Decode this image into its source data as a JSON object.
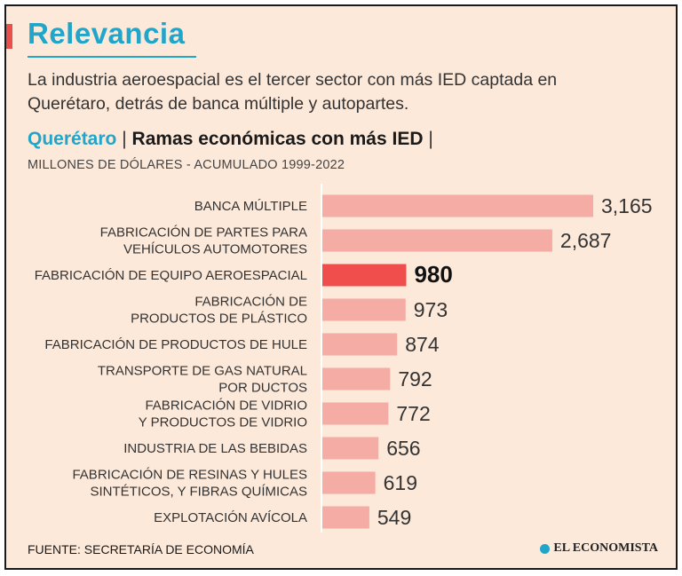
{
  "header": {
    "title": "Relevancia",
    "subtitle": "La industria aeroespacial es el tercer sector con más IED captada en Querétaro, detrás de banca múltiple y autopartes.",
    "chart_region": "Querétaro",
    "chart_title": "Ramas económicas con más IED",
    "separator": "|",
    "units": "MILLONES DE DÓLARES - ACUMULADO 1999-2022"
  },
  "footer": {
    "source": "FUENTE: SECRETARÍA DE ECONOMÍA",
    "brand": "EL ECONOMISTA"
  },
  "colors": {
    "accent_blue": "#21a5c9",
    "accent_red": "#e8504e",
    "bar": "#f4aca4",
    "bar_highlight": "#ef4e4c",
    "background": "#fde9da"
  },
  "chart_data": {
    "type": "bar",
    "orientation": "horizontal",
    "title": "Ramas económicas con más IED",
    "xlabel": "MILLONES DE DÓLARES - ACUMULADO 1999-2022",
    "ylabel": "",
    "xlim": [
      0,
      3165
    ],
    "categories": [
      [
        "BANCA MÚLTIPLE"
      ],
      [
        "FABRICACIÓN DE PARTES PARA",
        "VEHÍCULOS AUTOMOTORES"
      ],
      [
        "FABRICACIÓN DE EQUIPO AEROESPACIAL"
      ],
      [
        "FABRICACIÓN DE",
        "PRODUCTOS DE PLÁSTICO"
      ],
      [
        "FABRICACIÓN DE PRODUCTOS DE HULE"
      ],
      [
        "TRANSPORTE DE GAS NATURAL",
        "POR DUCTOS"
      ],
      [
        "FABRICACIÓN DE VIDRIO",
        "Y PRODUCTOS DE VIDRIO"
      ],
      [
        "INDUSTRIA DE LAS BEBIDAS"
      ],
      [
        "FABRICACIÓN DE RESINAS Y HULES",
        "SINTÉTICOS, Y FIBRAS QUÍMICAS"
      ],
      [
        "EXPLOTACIÓN AVÍCOLA"
      ]
    ],
    "values": [
      3165,
      2687,
      980,
      973,
      874,
      792,
      772,
      656,
      619,
      549
    ],
    "value_labels": [
      "3,165",
      "2,687",
      "980",
      "973",
      "874",
      "792",
      "772",
      "656",
      "619",
      "549"
    ],
    "highlight_index": 2
  }
}
